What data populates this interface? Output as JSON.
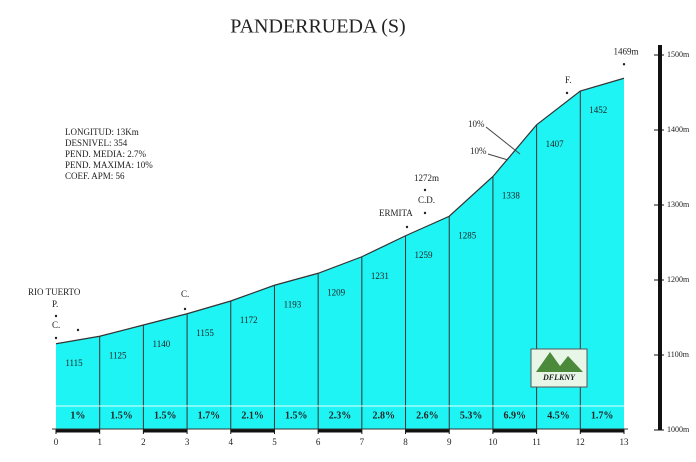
{
  "chart_data": {
    "type": "area",
    "title": "PANDERRUEDA (S)",
    "info": [
      "LONGITUD: 13Km",
      "DESNIVEL: 354",
      "PEND. MEDIA: 2.7%",
      "PEND. MAXIMA: 10%",
      "COEF. APM: 56"
    ],
    "x": [
      0,
      1,
      2,
      3,
      4,
      5,
      6,
      7,
      8,
      9,
      10,
      11,
      12,
      13
    ],
    "values": [
      1115,
      1125,
      1140,
      1155,
      1172,
      1193,
      1209,
      1231,
      1259,
      1285,
      1338,
      1407,
      1452,
      1469
    ],
    "value_labels": [
      "1115",
      "1125",
      "1140",
      "1155",
      "1172",
      "1193",
      "1209",
      "1231",
      "1259",
      "1285",
      "1338",
      "1407",
      "1452",
      "1469m"
    ],
    "color": "#1ff4f4",
    "gradients": {
      "values": [
        1,
        1.5,
        1.5,
        1.7,
        2.1,
        1.5,
        2.3,
        2.8,
        2.6,
        5.3,
        6.9,
        4.5,
        1.7
      ],
      "value_labels": [
        "1%",
        "1.5%",
        "1.5%",
        "1.7%",
        "2.1%",
        "1.5%",
        "2.3%",
        "2.8%",
        "2.6%",
        "5.3%",
        "6.9%",
        "4.5%",
        "1.7%"
      ]
    },
    "annotations": [
      "RIO TUERTO",
      "P.",
      "C.",
      "C.",
      "ERMITA",
      "1272m",
      "C.D.",
      "F.",
      "10%",
      "10%"
    ],
    "logo": "DFLKNY",
    "xlim": [
      0,
      13
    ],
    "xticks": [
      0,
      1,
      2,
      3,
      4,
      5,
      6,
      7,
      8,
      9,
      10,
      11,
      12,
      13
    ],
    "ylim": [
      1000,
      1500
    ],
    "yticks": [
      {
        "value": 1000,
        "label": "1000m"
      },
      {
        "value": 1100,
        "label": "1100m"
      },
      {
        "value": 1200,
        "label": "1200m"
      },
      {
        "value": 1300,
        "label": "1300m"
      },
      {
        "value": 1400,
        "label": "1400m"
      },
      {
        "value": 1500,
        "label": "1500m"
      }
    ],
    "grid": false
  }
}
